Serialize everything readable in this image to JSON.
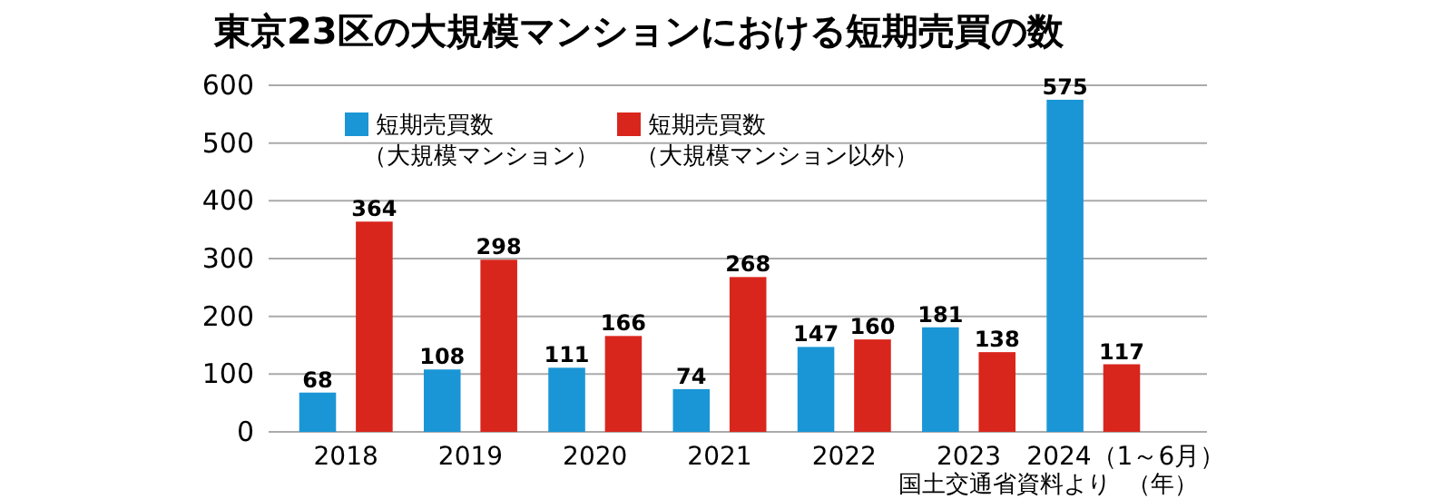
{
  "chart_data": {
    "type": "bar",
    "title": "東京23区の大規模マンションにおける短期売買の数",
    "xlabel": "（年）",
    "annotations": [
      "国土交通省資料より"
    ],
    "categories": [
      "2018",
      "2019",
      "2020",
      "2021",
      "2022",
      "2023",
      "2024（1～6月）"
    ],
    "series": [
      {
        "name": "短期売買数（大規模マンション）",
        "color": "#1a96d6",
        "values": [
          68,
          108,
          111,
          74,
          147,
          181,
          575
        ]
      },
      {
        "name": "短期売買数（大規模マンション以外）",
        "color": "#d9261c",
        "values": [
          364,
          298,
          166,
          268,
          160,
          138,
          117
        ]
      }
    ],
    "ylim": [
      0,
      600
    ],
    "yticks": [
      0,
      100,
      200,
      300,
      400,
      500,
      600
    ],
    "grid": "y",
    "legend": "top left",
    "data_labels": true
  }
}
